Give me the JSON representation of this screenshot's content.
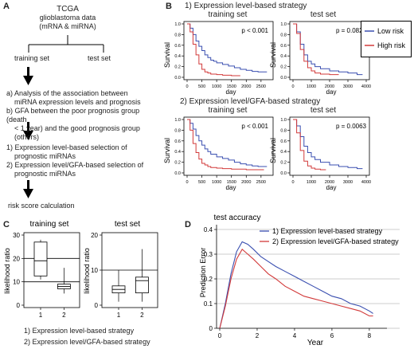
{
  "panels": {
    "A": "A",
    "B": "B",
    "C": "C",
    "D": "D"
  },
  "flow": {
    "title_line1": "TCGA",
    "title_line2": "glioblastoma data",
    "title_line3": "(mRNA & miRNA)",
    "training": "training set",
    "test": "test set",
    "step_a1": "a) Analysis of the association between",
    "step_a2": "miRNA expression levels and prognosis",
    "step_b1": "b) GFA between the poor prognosis group (death",
    "step_b2": "< 1 year) and the good prognosis group (others)",
    "sel1_l1": "1) Expression level-based selection of",
    "sel1_l2": "prognostic miRNAs",
    "sel2_l1": "2) Expression level/GFA-based selection of",
    "sel2_l2": "prognostic miRNAs",
    "risk": "risk score calculation"
  },
  "panelB": {
    "strategy1": "1) Expression level-based strategy",
    "strategy2": "2) Expression level/GFA-based strategy",
    "legend": [
      {
        "name": "Low risk",
        "color": "#3a4fb0"
      },
      {
        "name": "High risk",
        "color": "#d23a3a"
      }
    ],
    "plots": [
      {
        "title": "training set",
        "pvalue": "p < 0.001",
        "ylabel": "Survival",
        "xlabel": "day",
        "xticks": [
          "0",
          "500",
          "1000",
          "1500",
          "2000",
          "2500"
        ],
        "yticks": [
          "0.0",
          "0.2",
          "0.4",
          "0.6",
          "0.8",
          "1.0"
        ]
      },
      {
        "title": "test set",
        "pvalue": "p = 0.0824",
        "ylabel": "Survival",
        "xlabel": "day",
        "xticks": [
          "0",
          "1000",
          "2000",
          "3000",
          "4000"
        ],
        "yticks": [
          "0.0",
          "0.2",
          "0.4",
          "0.6",
          "0.8",
          "1.0"
        ]
      },
      {
        "title": "training set",
        "pvalue": "p < 0.001",
        "ylabel": "Survival",
        "xlabel": "day",
        "xticks": [
          "0",
          "500",
          "1000",
          "1500",
          "2000",
          "2500"
        ],
        "yticks": [
          "0.0",
          "0.2",
          "0.4",
          "0.6",
          "0.8",
          "1.0"
        ]
      },
      {
        "title": "test set",
        "pvalue": "p = 0.0063",
        "ylabel": "Survival",
        "xlabel": "day",
        "xticks": [
          "0",
          "1000",
          "2000",
          "3000",
          "4000"
        ],
        "yticks": [
          "0.0",
          "0.2",
          "0.4",
          "0.6",
          "0.8",
          "1.0"
        ]
      }
    ]
  },
  "panelC": {
    "ylabel": "likelihood ratio",
    "legend1": "1) Expression level-based strategy",
    "legend2": "2) Expression level/GFA-based strategy"
  },
  "chart_data": [
    {
      "type": "line",
      "title": "training set",
      "xlabel": "day",
      "ylabel": "Survival",
      "xlim": [
        0,
        2800
      ],
      "ylim": [
        0,
        1
      ],
      "series": [
        {
          "name": "Low risk",
          "x": [
            0,
            100,
            200,
            300,
            400,
            500,
            600,
            700,
            800,
            900,
            1000,
            1200,
            1400,
            1600,
            1800,
            2000,
            2200,
            2400,
            2600,
            2700
          ],
          "y": [
            1.0,
            0.92,
            0.8,
            0.68,
            0.58,
            0.5,
            0.42,
            0.37,
            0.32,
            0.3,
            0.27,
            0.24,
            0.21,
            0.18,
            0.15,
            0.13,
            0.11,
            0.1,
            0.1,
            0.1
          ]
        },
        {
          "name": "High risk",
          "x": [
            0,
            100,
            200,
            300,
            400,
            500,
            600,
            700,
            800,
            1000,
            1200,
            1500,
            1800
          ],
          "y": [
            1.0,
            0.85,
            0.62,
            0.42,
            0.25,
            0.15,
            0.1,
            0.08,
            0.06,
            0.05,
            0.04,
            0.03,
            0.03
          ]
        }
      ]
    },
    {
      "type": "line",
      "title": "test set",
      "xlabel": "day",
      "ylabel": "Survival",
      "xlim": [
        0,
        4000
      ],
      "ylim": [
        0,
        1
      ],
      "series": [
        {
          "name": "Low risk",
          "x": [
            0,
            200,
            400,
            600,
            800,
            1000,
            1200,
            1500,
            2000,
            2500,
            3000,
            3500,
            3800
          ],
          "y": [
            1.0,
            0.85,
            0.62,
            0.42,
            0.3,
            0.25,
            0.2,
            0.16,
            0.12,
            0.1,
            0.08,
            0.05,
            0.05
          ]
        },
        {
          "name": "High risk",
          "x": [
            0,
            200,
            400,
            600,
            800,
            1000,
            1200,
            1500,
            2000,
            2500
          ],
          "y": [
            1.0,
            0.82,
            0.52,
            0.3,
            0.18,
            0.12,
            0.08,
            0.06,
            0.05,
            0.05
          ]
        }
      ]
    },
    {
      "type": "line",
      "title": "training set",
      "xlabel": "day",
      "ylabel": "Survival",
      "xlim": [
        0,
        2800
      ],
      "ylim": [
        0,
        1
      ],
      "series": [
        {
          "name": "Low risk",
          "x": [
            0,
            100,
            200,
            300,
            400,
            500,
            600,
            700,
            800,
            1000,
            1200,
            1400,
            1600,
            1800,
            2000,
            2200,
            2400,
            2700
          ],
          "y": [
            1.0,
            0.93,
            0.82,
            0.7,
            0.6,
            0.52,
            0.45,
            0.4,
            0.35,
            0.3,
            0.27,
            0.24,
            0.2,
            0.17,
            0.15,
            0.13,
            0.12,
            0.12
          ]
        },
        {
          "name": "High risk",
          "x": [
            0,
            100,
            200,
            300,
            400,
            500,
            600,
            700,
            800,
            1000,
            1200,
            1500,
            2000,
            2600
          ],
          "y": [
            1.0,
            0.8,
            0.55,
            0.38,
            0.26,
            0.18,
            0.15,
            0.12,
            0.1,
            0.09,
            0.08,
            0.07,
            0.06,
            0.06
          ]
        }
      ]
    },
    {
      "type": "line",
      "title": "test set",
      "xlabel": "day",
      "ylabel": "Survival",
      "xlim": [
        0,
        4000
      ],
      "ylim": [
        0,
        1
      ],
      "series": [
        {
          "name": "Low risk",
          "x": [
            0,
            200,
            400,
            600,
            800,
            1000,
            1200,
            1500,
            2000,
            2500,
            3000,
            3500,
            3800
          ],
          "y": [
            1.0,
            0.88,
            0.68,
            0.5,
            0.38,
            0.3,
            0.25,
            0.2,
            0.15,
            0.12,
            0.1,
            0.08,
            0.08
          ]
        },
        {
          "name": "High risk",
          "x": [
            0,
            200,
            400,
            600,
            800,
            1000,
            1200,
            1500,
            1800
          ],
          "y": [
            1.0,
            0.75,
            0.42,
            0.22,
            0.13,
            0.09,
            0.07,
            0.06,
            0.06
          ]
        }
      ]
    },
    {
      "type": "box",
      "title": "training set",
      "ylabel": "likelihood ratio",
      "ylim": [
        0,
        30
      ],
      "yticks": [
        0,
        10,
        20,
        30
      ],
      "categories": [
        "1",
        "2"
      ],
      "boxes": [
        {
          "min": 11,
          "q1": 12.5,
          "median": 19,
          "q3": 27,
          "max": 28
        },
        {
          "min": 5,
          "q1": 7,
          "median": 8,
          "q3": 9,
          "max": 16
        }
      ],
      "hlines": [
        10,
        20
      ]
    },
    {
      "type": "box",
      "title": "test set",
      "ylabel": "likelihood ratio",
      "ylim": [
        0,
        20
      ],
      "yticks": [
        0,
        10,
        20
      ],
      "categories": [
        "1",
        "2"
      ],
      "boxes": [
        {
          "min": 1,
          "q1": 3.5,
          "median": 4.5,
          "q3": 5.5,
          "max": 10
        },
        {
          "min": 1,
          "q1": 3.5,
          "median": 7,
          "q3": 8,
          "max": 16
        }
      ],
      "hlines": [
        10
      ]
    },
    {
      "type": "line",
      "title": "test accuracy",
      "xlabel": "Year",
      "ylabel": "Prediction Error",
      "xlim": [
        0,
        8.6
      ],
      "ylim": [
        0,
        0.4
      ],
      "xticks": [
        0,
        2,
        4,
        6,
        8
      ],
      "yticks": [
        0,
        0.1,
        0.2,
        0.3,
        0.4
      ],
      "series": [
        {
          "name": "1) Expression level-based strategy",
          "x": [
            0,
            0.3,
            0.6,
            0.9,
            1.2,
            1.5,
            1.8,
            2.2,
            2.6,
            3,
            3.5,
            4,
            4.5,
            5,
            5.5,
            6,
            6.5,
            7,
            7.5,
            8,
            8.2
          ],
          "y": [
            0.0,
            0.1,
            0.22,
            0.31,
            0.35,
            0.34,
            0.32,
            0.29,
            0.27,
            0.25,
            0.23,
            0.21,
            0.19,
            0.17,
            0.15,
            0.13,
            0.12,
            0.1,
            0.09,
            0.07,
            0.06
          ]
        },
        {
          "name": "2) Expression level/GFA-based strategy",
          "x": [
            0,
            0.3,
            0.6,
            0.9,
            1.2,
            1.5,
            1.8,
            2.2,
            2.6,
            3,
            3.5,
            4,
            4.5,
            5,
            5.5,
            6,
            6.5,
            7,
            7.5,
            8,
            8.2
          ],
          "y": [
            0.0,
            0.09,
            0.2,
            0.28,
            0.32,
            0.3,
            0.28,
            0.25,
            0.22,
            0.2,
            0.17,
            0.15,
            0.13,
            0.12,
            0.11,
            0.1,
            0.09,
            0.08,
            0.07,
            0.05,
            0.05
          ]
        }
      ]
    }
  ]
}
